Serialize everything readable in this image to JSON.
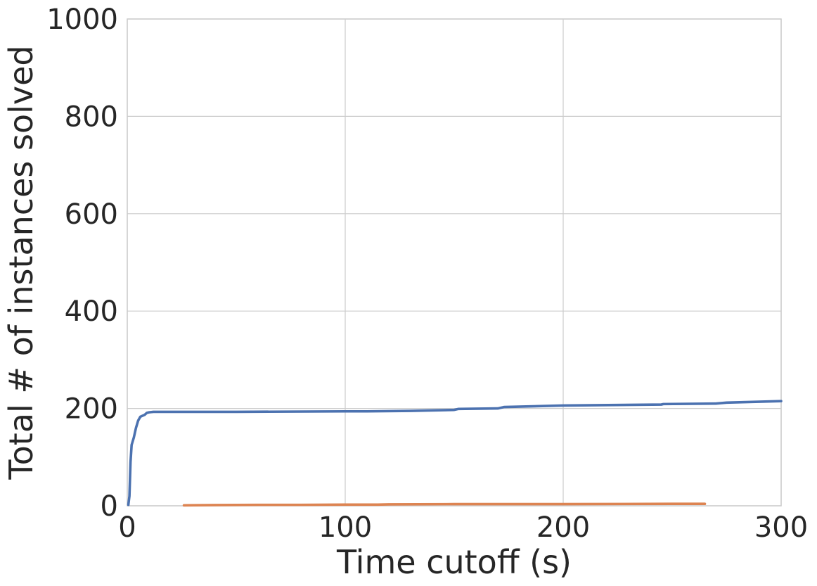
{
  "chart_data": {
    "type": "line",
    "title": "",
    "xlabel": "Time cutoff (s)",
    "ylabel": "Total # of instances solved",
    "xlim": [
      0,
      300
    ],
    "ylim": [
      0,
      1000
    ],
    "xticks": [
      0,
      100,
      200,
      300
    ],
    "yticks": [
      0,
      200,
      400,
      600,
      800,
      1000
    ],
    "xtick_labels": [
      "0",
      "100",
      "200",
      "300"
    ],
    "ytick_labels": [
      "0",
      "200",
      "400",
      "600",
      "800",
      "1000"
    ],
    "grid": true,
    "legend": null,
    "series": [
      {
        "color": "#4c72b0",
        "x": [
          0.5,
          1,
          1.5,
          2,
          3,
          4,
          5,
          6,
          7,
          8,
          9,
          10,
          12,
          15,
          20,
          50,
          100,
          110,
          130,
          150,
          152,
          170,
          173,
          200,
          245,
          246,
          270,
          275,
          300
        ],
        "y": [
          2,
          20,
          90,
          125,
          140,
          160,
          175,
          183,
          185,
          187,
          191,
          192,
          193,
          193,
          193,
          193,
          194,
          194,
          195,
          197,
          199,
          200,
          203,
          206,
          208,
          209,
          210,
          212,
          215
        ]
      },
      {
        "color": "#dd8452",
        "x": [
          26,
          40,
          60,
          80,
          100,
          115,
          120,
          150,
          200,
          250,
          265
        ],
        "y": [
          1,
          1.5,
          2,
          2,
          2.5,
          2.5,
          3,
          3.5,
          3.5,
          4,
          4
        ]
      }
    ]
  }
}
